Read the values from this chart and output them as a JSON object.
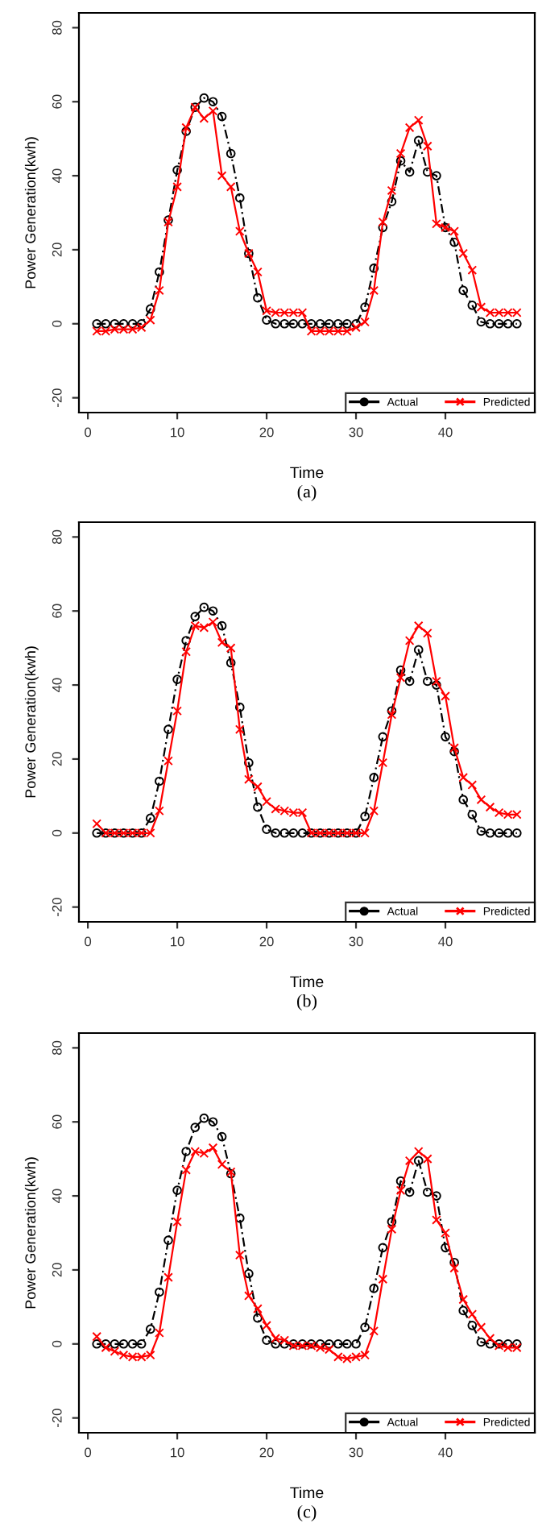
{
  "chart_data": [
    {
      "type": "line",
      "xlabel": "Time",
      "ylabel": "Power Generation(kwh)",
      "annotations": [
        "(a)"
      ],
      "xlim": [
        -1,
        50
      ],
      "ylim": [
        -24,
        84
      ],
      "xticks": [
        0,
        10,
        20,
        30,
        40
      ],
      "yticks": [
        -20,
        0,
        20,
        40,
        60,
        80
      ],
      "grid": false,
      "legend": "bottom right",
      "x": [
        1,
        2,
        3,
        4,
        5,
        6,
        7,
        8,
        9,
        10,
        11,
        12,
        13,
        14,
        15,
        16,
        17,
        18,
        19,
        20,
        21,
        22,
        23,
        24,
        25,
        26,
        27,
        28,
        29,
        30,
        31,
        32,
        33,
        34,
        35,
        36,
        37,
        38,
        39,
        40,
        41,
        42,
        43,
        44,
        45,
        46,
        47,
        48
      ],
      "series": [
        {
          "name": "Actual",
          "color": "#000000",
          "marker": "circle",
          "line_style": "dashed",
          "values": [
            0,
            0,
            0,
            0,
            0,
            0,
            4,
            14,
            28,
            41.5,
            52,
            58.5,
            61,
            60,
            56,
            46,
            34,
            19,
            7,
            1,
            0,
            0,
            0,
            0,
            0,
            0,
            0,
            0,
            0,
            0,
            4.5,
            15,
            26,
            33,
            44,
            41,
            49.5,
            41,
            40,
            26,
            22,
            9,
            5,
            0.5,
            0,
            0,
            0,
            0
          ]
        },
        {
          "name": "Predicted",
          "color": "#ff0000",
          "marker": "cross",
          "line_style": "solid",
          "values": [
            -2,
            -2,
            -1.5,
            -1.5,
            -1.5,
            -1,
            1,
            9,
            27.5,
            37,
            53,
            58.5,
            55.5,
            57.5,
            40,
            37,
            25,
            19,
            14,
            3.5,
            3,
            3,
            3,
            3,
            -2,
            -2,
            -2,
            -2,
            -2,
            -1,
            0.5,
            9,
            27.5,
            36,
            46,
            53,
            55,
            48,
            27,
            26,
            25,
            19,
            14.5,
            4.5,
            3,
            3,
            3,
            3
          ]
        }
      ]
    },
    {
      "type": "line",
      "xlabel": "Time",
      "ylabel": "Power Generation(kwh)",
      "annotations": [
        "(b)"
      ],
      "xlim": [
        -1,
        50
      ],
      "ylim": [
        -24,
        84
      ],
      "xticks": [
        0,
        10,
        20,
        30,
        40
      ],
      "yticks": [
        -20,
        0,
        20,
        40,
        60,
        80
      ],
      "grid": false,
      "legend": "bottom right",
      "x": [
        1,
        2,
        3,
        4,
        5,
        6,
        7,
        8,
        9,
        10,
        11,
        12,
        13,
        14,
        15,
        16,
        17,
        18,
        19,
        20,
        21,
        22,
        23,
        24,
        25,
        26,
        27,
        28,
        29,
        30,
        31,
        32,
        33,
        34,
        35,
        36,
        37,
        38,
        39,
        40,
        41,
        42,
        43,
        44,
        45,
        46,
        47,
        48
      ],
      "series": [
        {
          "name": "Actual",
          "color": "#000000",
          "marker": "circle",
          "line_style": "dashed",
          "values": [
            0,
            0,
            0,
            0,
            0,
            0,
            4,
            14,
            28,
            41.5,
            52,
            58.5,
            61,
            60,
            56,
            46,
            34,
            19,
            7,
            1,
            0,
            0,
            0,
            0,
            0,
            0,
            0,
            0,
            0,
            0,
            4.5,
            15,
            26,
            33,
            44,
            41,
            49.5,
            41,
            40,
            26,
            22,
            9,
            5,
            0.5,
            0,
            0,
            0,
            0
          ]
        },
        {
          "name": "Predicted",
          "color": "#ff0000",
          "marker": "cross",
          "line_style": "solid",
          "values": [
            2.5,
            0,
            0,
            0,
            0,
            0,
            0,
            6,
            19.5,
            33,
            49,
            56,
            55.5,
            57,
            51.5,
            50,
            28,
            14.5,
            12.5,
            8.5,
            6.5,
            6,
            5.5,
            5.5,
            0,
            0,
            0,
            0,
            0,
            0,
            0,
            6,
            19,
            32,
            42,
            52,
            56,
            54,
            41,
            37,
            23,
            15,
            13,
            9,
            7,
            5.5,
            5,
            5
          ]
        }
      ]
    },
    {
      "type": "line",
      "xlabel": "Time",
      "ylabel": "Power Generation(kwh)",
      "annotations": [
        "(c)"
      ],
      "xlim": [
        -1,
        50
      ],
      "ylim": [
        -24,
        84
      ],
      "xticks": [
        0,
        10,
        20,
        30,
        40
      ],
      "yticks": [
        -20,
        0,
        20,
        40,
        60,
        80
      ],
      "grid": false,
      "legend": "bottom right",
      "x": [
        1,
        2,
        3,
        4,
        5,
        6,
        7,
        8,
        9,
        10,
        11,
        12,
        13,
        14,
        15,
        16,
        17,
        18,
        19,
        20,
        21,
        22,
        23,
        24,
        25,
        26,
        27,
        28,
        29,
        30,
        31,
        32,
        33,
        34,
        35,
        36,
        37,
        38,
        39,
        40,
        41,
        42,
        43,
        44,
        45,
        46,
        47,
        48
      ],
      "series": [
        {
          "name": "Actual",
          "color": "#000000",
          "marker": "circle",
          "line_style": "dashed",
          "values": [
            0,
            0,
            0,
            0,
            0,
            0,
            4,
            14,
            28,
            41.5,
            52,
            58.5,
            61,
            60,
            56,
            46,
            34,
            19,
            7,
            1,
            0,
            0,
            0,
            0,
            0,
            0,
            0,
            0,
            0,
            0,
            4.5,
            15,
            26,
            33,
            44,
            41,
            49.5,
            41,
            40,
            26,
            22,
            9,
            5,
            0.5,
            0,
            0,
            0,
            0
          ]
        },
        {
          "name": "Predicted",
          "color": "#ff0000",
          "marker": "cross",
          "line_style": "solid",
          "values": [
            2,
            -1,
            -2,
            -3,
            -3.5,
            -3.5,
            -3,
            3,
            18,
            33,
            47,
            52,
            51.5,
            53,
            48.5,
            46.5,
            24,
            13,
            9.5,
            5,
            1.5,
            1,
            -0.5,
            -0.5,
            -0.5,
            -1,
            -1.5,
            -3.5,
            -4,
            -3.5,
            -3,
            3.5,
            17.5,
            31,
            41.5,
            49.5,
            52,
            50,
            33.5,
            30,
            20.5,
            12,
            8,
            4.5,
            1.5,
            -0.5,
            -1,
            -1
          ]
        }
      ]
    }
  ]
}
